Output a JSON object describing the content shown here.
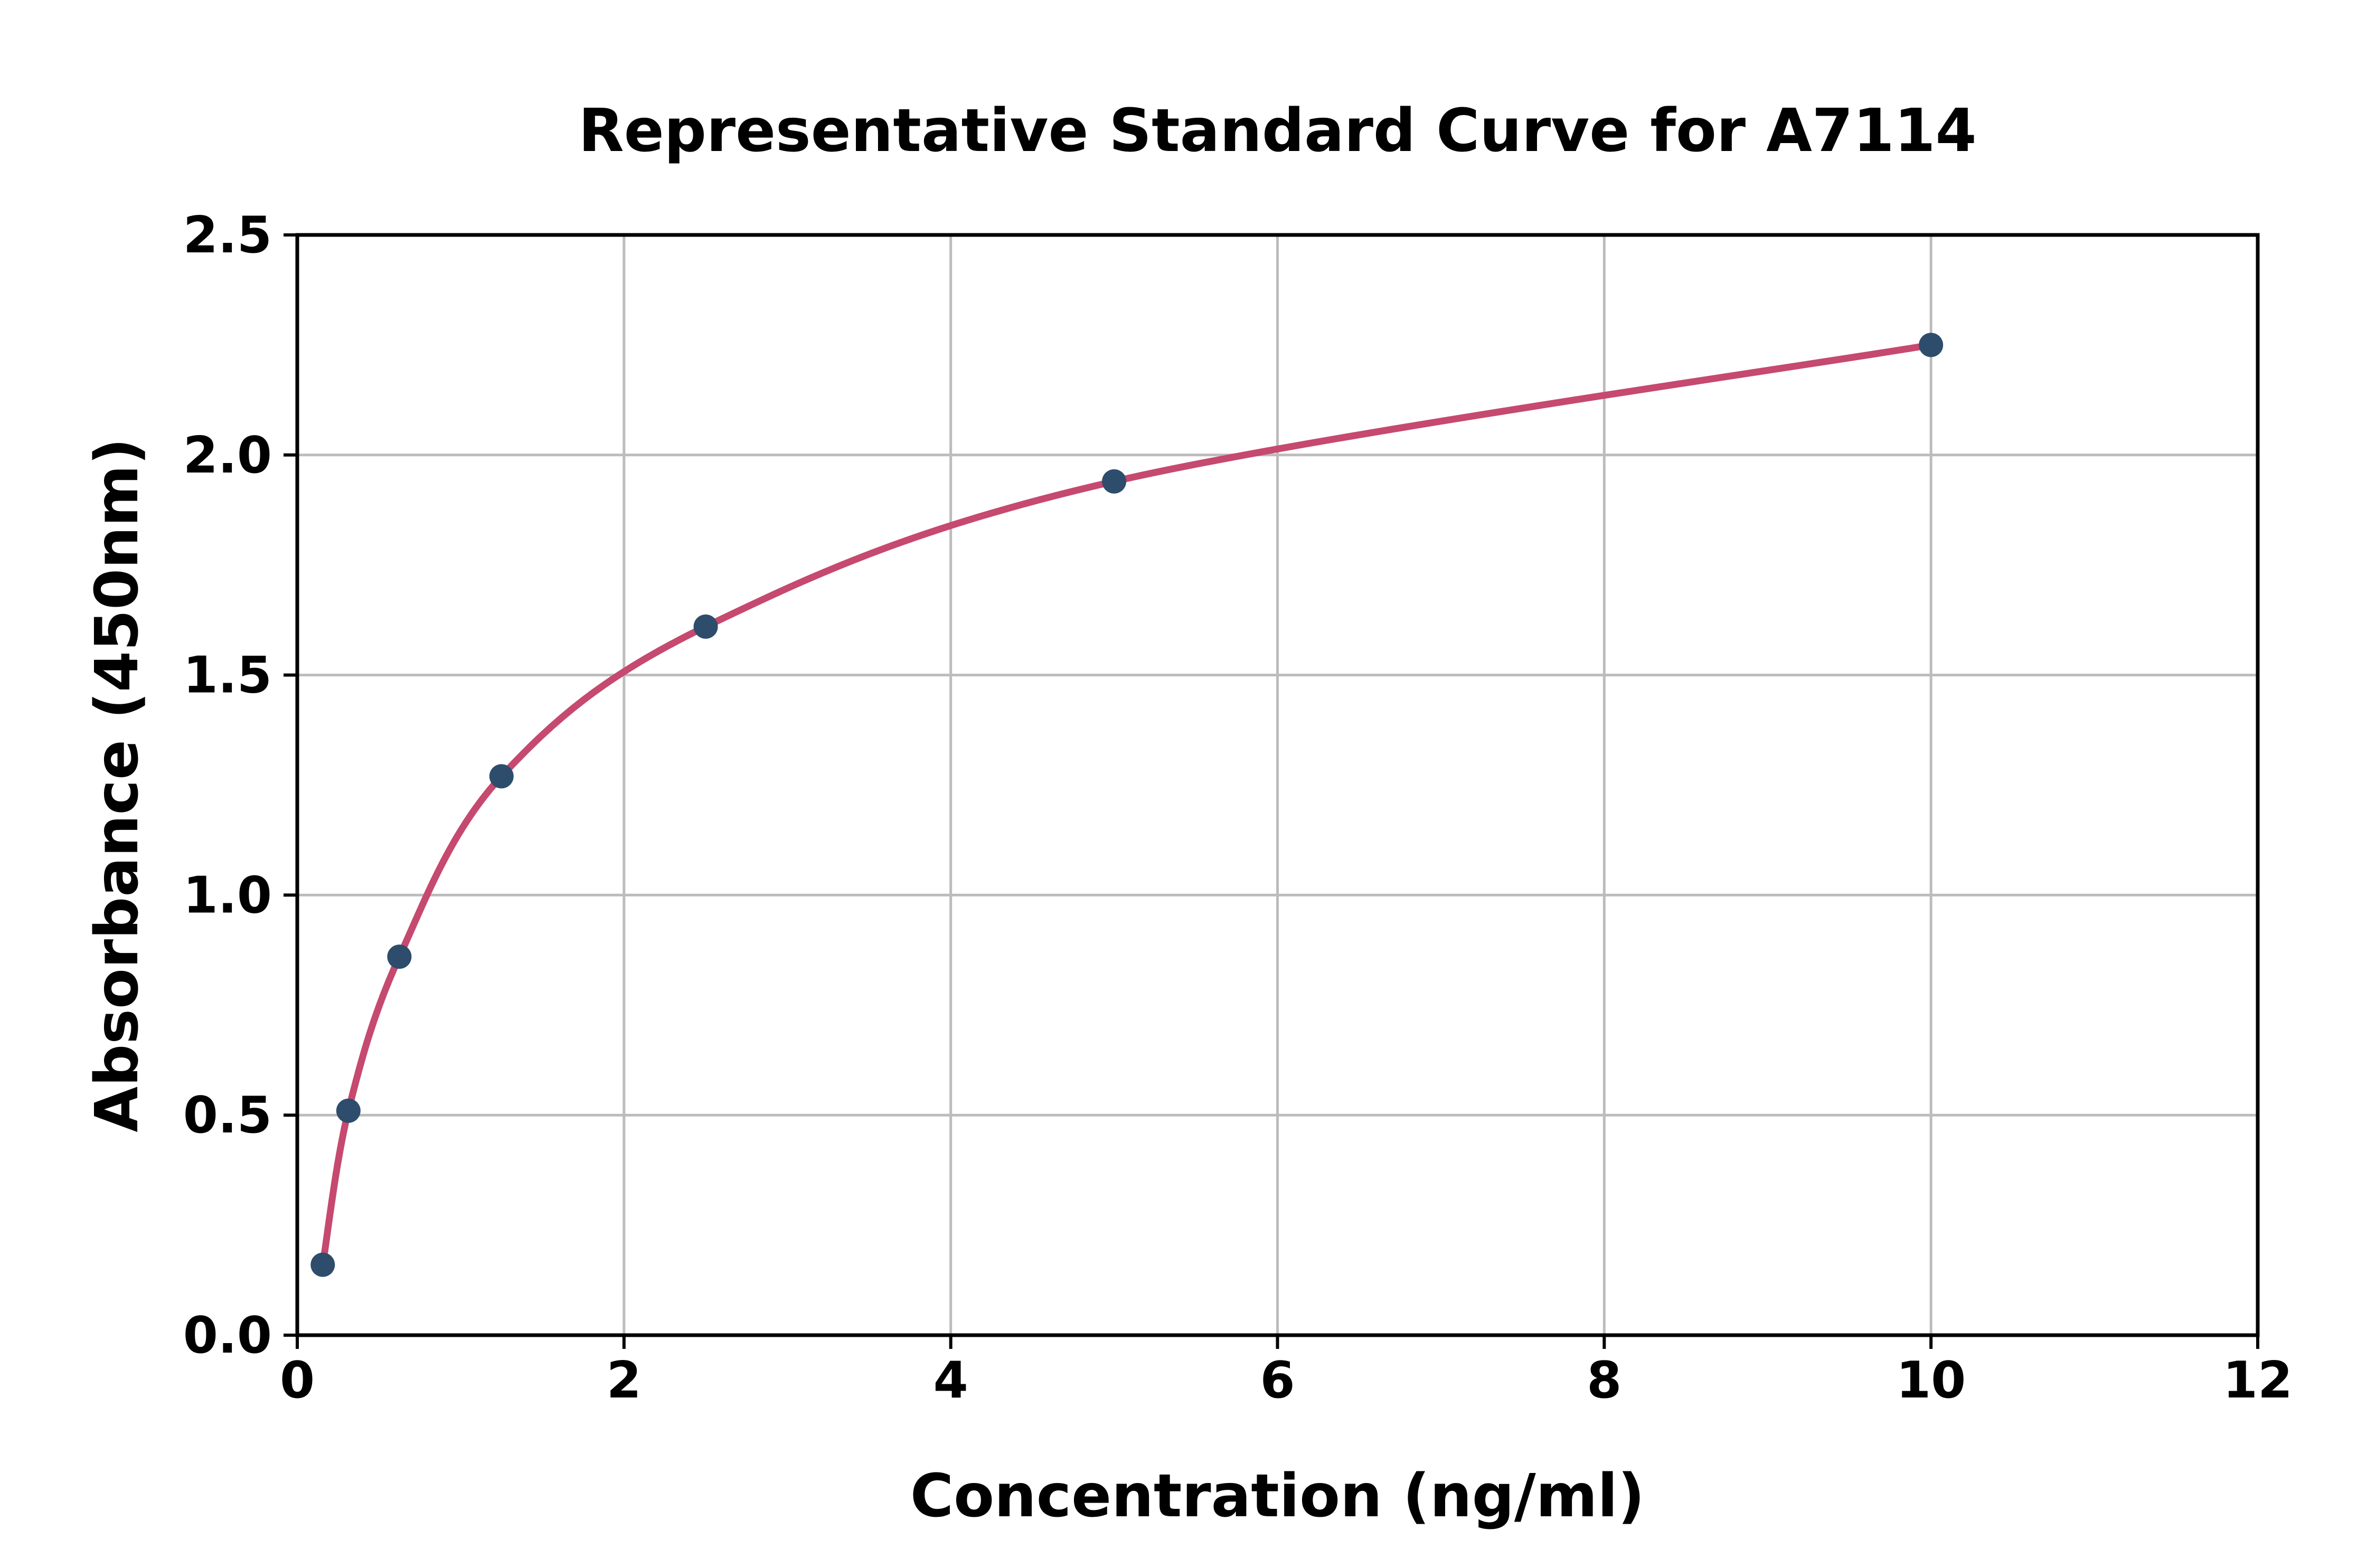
{
  "chart_data": {
    "type": "line",
    "title": "Representative Standard Curve for A7114",
    "xlabel": "Concentration (ng/ml)",
    "ylabel": "Absorbance (450nm)",
    "xlim": [
      0,
      12
    ],
    "ylim": [
      0,
      2.5
    ],
    "x_ticks": [
      "0",
      "2",
      "4",
      "6",
      "8",
      "10",
      "12"
    ],
    "y_ticks": [
      "0.0",
      "0.5",
      "1.0",
      "1.5",
      "2.0",
      "2.5"
    ],
    "grid": true,
    "legend_position": "none",
    "series": [
      {
        "name": "Standard curve fit",
        "x": [
          0.156,
          0.313,
          0.625,
          1.25,
          2.5,
          5,
          10
        ],
        "y": [
          0.16,
          0.51,
          0.86,
          1.27,
          1.61,
          1.94,
          2.25
        ]
      }
    ],
    "colors": {
      "curve": "#C6496F",
      "marker": "#2E4D6C",
      "grid": "#BCBCBC",
      "axis": "#000000",
      "text": "#000000",
      "background": "#FFFFFF"
    }
  }
}
